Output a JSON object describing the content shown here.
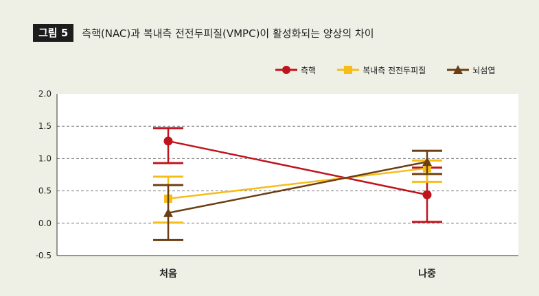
{
  "figure": {
    "badge": "그림 5",
    "title": "측핵(NAC)과 복내측 전전두피질(VMPC)이 활성화되는 양상의 차이"
  },
  "chart_data": {
    "type": "line",
    "categories": [
      "처음",
      "나중"
    ],
    "ylim": [
      -0.5,
      2.0
    ],
    "yticks": [
      "2.0",
      "1.5",
      "1.0",
      "0.5",
      "0.0",
      "-0.5"
    ],
    "ytick_values": [
      2.0,
      1.5,
      1.0,
      0.5,
      0.0,
      -0.5
    ],
    "grid": "horizontal dashed",
    "legend_position": "top-right",
    "series": [
      {
        "name": "측핵",
        "marker": "circle",
        "color": "#c0141c",
        "values": [
          1.27,
          0.44
        ],
        "err_low": [
          0.93,
          0.02
        ],
        "err_high": [
          1.47,
          0.86
        ]
      },
      {
        "name": "복내측 전전두피질",
        "marker": "square",
        "color": "#f6bd16",
        "values": [
          0.38,
          0.85
        ],
        "err_low": [
          0.01,
          0.64
        ],
        "err_high": [
          0.72,
          0.97
        ]
      },
      {
        "name": "뇌섬엽",
        "marker": "triangle",
        "color": "#6b3f12",
        "values": [
          0.16,
          0.95
        ],
        "err_low": [
          -0.26,
          0.76
        ],
        "err_high": [
          0.59,
          1.12
        ]
      }
    ]
  }
}
